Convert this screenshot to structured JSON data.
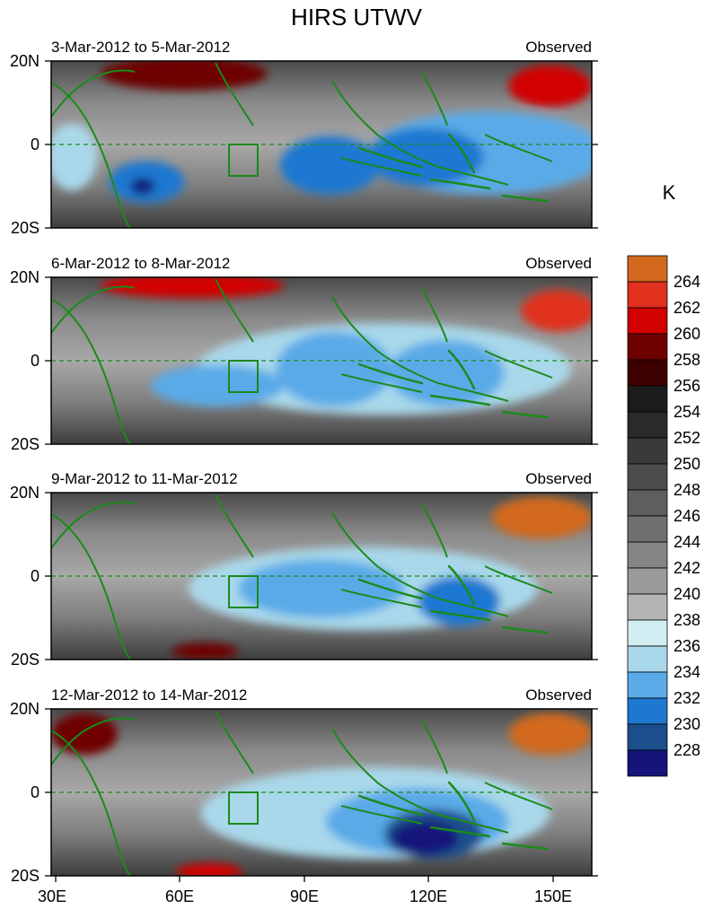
{
  "title": "HIRS UTWV",
  "units": "K",
  "panels": [
    {
      "period": "3-Mar-2012 to 5-Mar-2012",
      "label": "Observed"
    },
    {
      "period": "6-Mar-2012 to 8-Mar-2012",
      "label": "Observed"
    },
    {
      "period": "9-Mar-2012 to 11-Mar-2012",
      "label": "Observed"
    },
    {
      "period": "12-Mar-2012 to 14-Mar-2012",
      "label": "Observed"
    }
  ],
  "lat_ticks": [
    "20N",
    "0",
    "20S"
  ],
  "lon_ticks": [
    "30E",
    "60E",
    "90E",
    "120E",
    "150E"
  ],
  "colorbar": {
    "labels": [
      "264",
      "262",
      "260",
      "258",
      "256",
      "254",
      "252",
      "250",
      "248",
      "246",
      "244",
      "242",
      "240",
      "238",
      "236",
      "234",
      "232",
      "230",
      "228"
    ],
    "colors": [
      "#d2691e",
      "#e0301e",
      "#d20000",
      "#6e0000",
      "#3c0000",
      "#1c1c1c",
      "#2a2a2a",
      "#3a3a3a",
      "#4c4c4c",
      "#5e5e5e",
      "#707070",
      "#858585",
      "#9a9a9a",
      "#b4b4b4",
      "#d3eef2",
      "#a9d8ea",
      "#5aaae8",
      "#1e78d0",
      "#1a4f8c",
      "#14147a"
    ]
  },
  "map": {
    "lon_range": [
      30,
      160
    ],
    "lat_range": [
      -20,
      20
    ],
    "equator_line": "dashed",
    "coastline_color": "#1b8a1b",
    "box_region": {
      "lon": [
        73,
        80
      ],
      "lat": [
        -7.5,
        0
      ]
    }
  },
  "panel_blobs": [
    [
      {
        "lon": 135,
        "lat": -2,
        "rx": 28,
        "ry": 10,
        "level": "#5aaae8"
      },
      {
        "lon": 120,
        "lat": -3,
        "rx": 14,
        "ry": 7,
        "level": "#1e78d0"
      },
      {
        "lon": 97,
        "lat": -5,
        "rx": 12,
        "ry": 7,
        "level": "#1e78d0"
      },
      {
        "lon": 53,
        "lat": -9,
        "rx": 9,
        "ry": 5,
        "level": "#1e78d0"
      },
      {
        "lon": 52,
        "lat": -10,
        "rx": 3,
        "ry": 2,
        "level": "#14147a"
      },
      {
        "lon": 35,
        "lat": -3,
        "rx": 6,
        "ry": 8,
        "level": "#a9d8ea"
      },
      {
        "lon": 62,
        "lat": 17,
        "rx": 20,
        "ry": 4,
        "level": "#6e0000"
      },
      {
        "lon": 150,
        "lat": 14,
        "rx": 10,
        "ry": 5,
        "level": "#d20000"
      }
    ],
    [
      {
        "lon": 110,
        "lat": -2,
        "rx": 45,
        "ry": 11,
        "level": "#a9d8ea"
      },
      {
        "lon": 98,
        "lat": -2,
        "rx": 14,
        "ry": 9,
        "level": "#5aaae8"
      },
      {
        "lon": 125,
        "lat": -3,
        "rx": 14,
        "ry": 8,
        "level": "#5aaae8"
      },
      {
        "lon": 70,
        "lat": -6,
        "rx": 16,
        "ry": 5,
        "level": "#5aaae8"
      },
      {
        "lon": 64,
        "lat": 18,
        "rx": 22,
        "ry": 3,
        "level": "#d20000"
      },
      {
        "lon": 152,
        "lat": 12,
        "rx": 9,
        "ry": 5,
        "level": "#e0301e"
      }
    ],
    [
      {
        "lon": 105,
        "lat": -3,
        "rx": 42,
        "ry": 10,
        "level": "#a9d8ea"
      },
      {
        "lon": 95,
        "lat": -3,
        "rx": 20,
        "ry": 7,
        "level": "#5aaae8"
      },
      {
        "lon": 128,
        "lat": -6,
        "rx": 10,
        "ry": 6,
        "level": "#1e78d0"
      },
      {
        "lon": 148,
        "lat": 14,
        "rx": 12,
        "ry": 5,
        "level": "#d2691e"
      },
      {
        "lon": 67,
        "lat": -18,
        "rx": 8,
        "ry": 2,
        "level": "#6e0000"
      }
    ],
    [
      {
        "lon": 108,
        "lat": -5,
        "rx": 42,
        "ry": 11,
        "level": "#a9d8ea"
      },
      {
        "lon": 118,
        "lat": -7,
        "rx": 22,
        "ry": 8,
        "level": "#5aaae8"
      },
      {
        "lon": 122,
        "lat": -10,
        "rx": 12,
        "ry": 6,
        "level": "#1a4f8c"
      },
      {
        "lon": 120,
        "lat": -11,
        "rx": 8,
        "ry": 4,
        "level": "#14147a"
      },
      {
        "lon": 150,
        "lat": 14,
        "rx": 10,
        "ry": 5,
        "level": "#d2691e"
      },
      {
        "lon": 38,
        "lat": 14,
        "rx": 8,
        "ry": 5,
        "level": "#6e0000"
      },
      {
        "lon": 68,
        "lat": -19,
        "rx": 8,
        "ry": 2,
        "level": "#d20000"
      }
    ]
  ]
}
